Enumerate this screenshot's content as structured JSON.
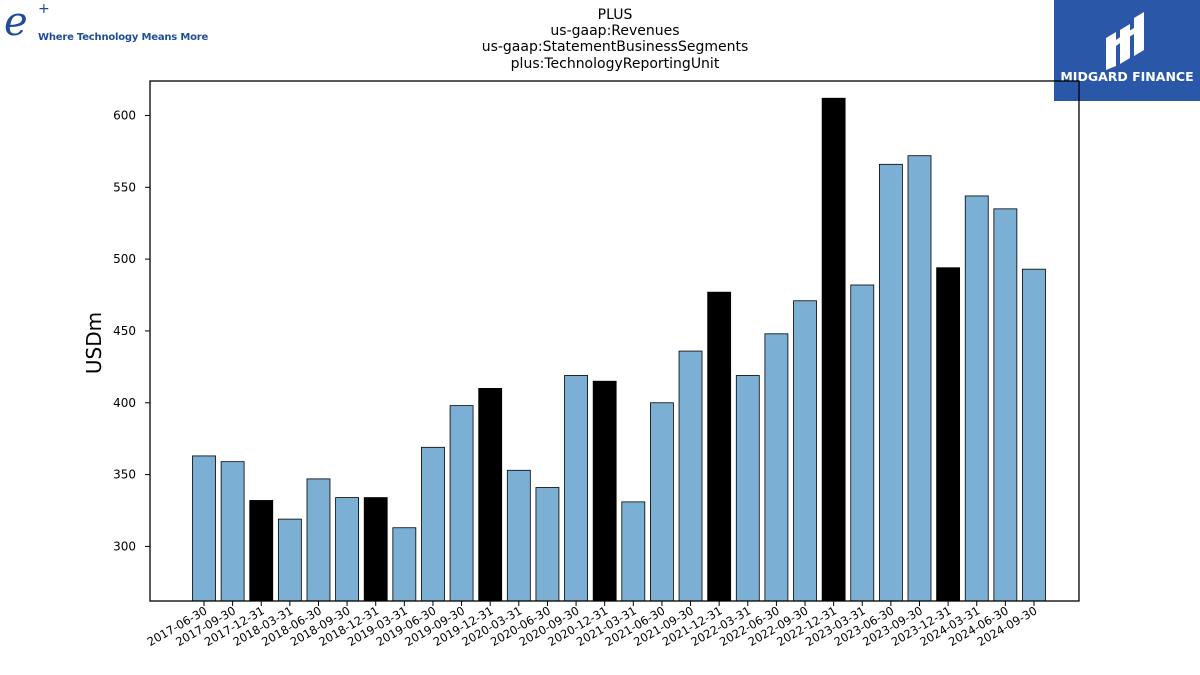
{
  "title_lines": [
    "PLUS",
    "us-gaap:Revenues",
    "us-gaap:StatementBusinessSegments",
    "plus:TechnologyReportingUnit"
  ],
  "logo_left": {
    "mark": "e",
    "plus": "+",
    "tagline": "Where Technology Means More"
  },
  "logo_right": {
    "brand": "MIDGARD FINANCE",
    "icon": "midgard-logo-icon"
  },
  "colors": {
    "bar_default": "#7bafd4",
    "bar_highlight": "#000000",
    "bar_edge": "#000000",
    "logo_blue": "#2b57a8"
  },
  "chart_data": {
    "type": "bar",
    "ylabel": "USDm",
    "xlabel": "",
    "ylim": [
      262,
      624
    ],
    "yticks": [
      300,
      350,
      400,
      450,
      500,
      550,
      600
    ],
    "grid": false,
    "categories": [
      "2017-06-30",
      "2017-09-30",
      "2017-12-31",
      "2018-03-31",
      "2018-06-30",
      "2018-09-30",
      "2018-12-31",
      "2019-03-31",
      "2019-06-30",
      "2019-09-30",
      "2019-12-31",
      "2020-03-31",
      "2020-06-30",
      "2020-09-30",
      "2020-12-31",
      "2021-03-31",
      "2021-06-30",
      "2021-09-30",
      "2021-12-31",
      "2022-03-31",
      "2022-06-30",
      "2022-09-30",
      "2022-12-31",
      "2023-03-31",
      "2023-06-30",
      "2023-09-30",
      "2023-12-31",
      "2024-03-31",
      "2024-06-30",
      "2024-09-30"
    ],
    "values": [
      363,
      359,
      332,
      319,
      347,
      334,
      334,
      313,
      369,
      398,
      410,
      353,
      341,
      419,
      415,
      331,
      400,
      436,
      477,
      419,
      448,
      471,
      612,
      482,
      566,
      572,
      494,
      544,
      535,
      493
    ],
    "highlight": [
      false,
      false,
      true,
      false,
      false,
      false,
      true,
      false,
      false,
      false,
      true,
      false,
      false,
      false,
      true,
      false,
      false,
      false,
      true,
      false,
      false,
      false,
      true,
      false,
      false,
      false,
      true,
      false,
      false,
      false
    ]
  }
}
